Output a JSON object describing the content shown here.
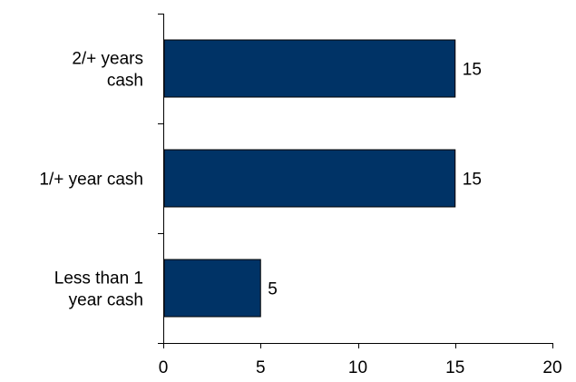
{
  "chart_data": {
    "type": "bar",
    "orientation": "horizontal",
    "categories": [
      [
        "2/+ years",
        "cash"
      ],
      [
        "1/+ year cash"
      ],
      [
        "Less than 1",
        "year cash"
      ]
    ],
    "values": [
      15,
      15,
      5
    ],
    "data_labels": [
      "15",
      "15",
      "5"
    ],
    "xlim": [
      0,
      20
    ],
    "x_ticks": [
      0,
      5,
      10,
      15,
      20
    ],
    "x_tick_labels": [
      "0",
      "5",
      "10",
      "15",
      "20"
    ],
    "bar_color": "#003366",
    "grid": false,
    "legend": "none"
  }
}
